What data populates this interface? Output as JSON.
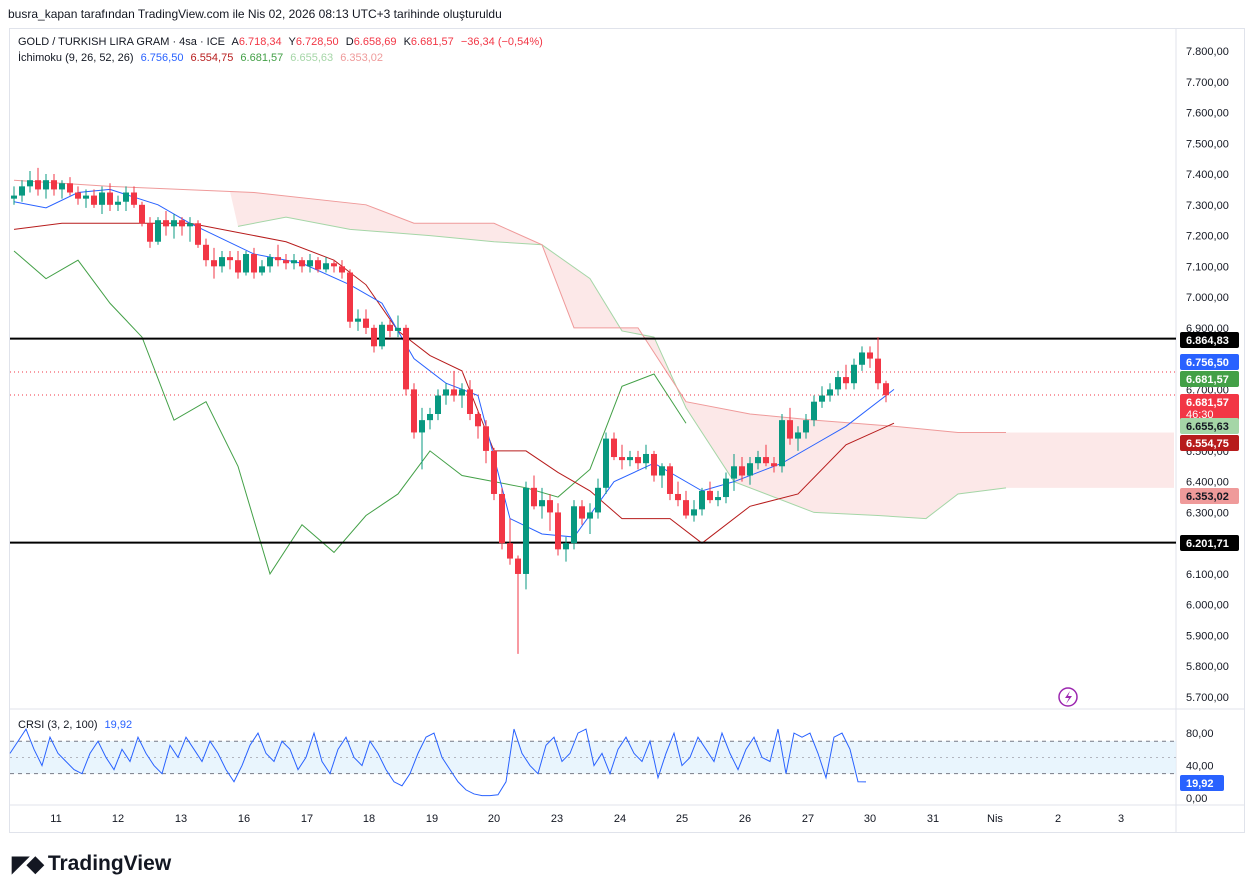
{
  "header": {
    "caption": "busra_kapan tarafından TradingView.com ile Nis 02, 2026 08:13 UTC+3 tarihinde oluşturuldu"
  },
  "legend": {
    "symbol": "GOLD / TURKISH LIRA GRAM · 4sa · ICE",
    "o_label": "A",
    "o_value": "6.718,34",
    "h_label": "Y",
    "h_value": "6.728,50",
    "l_label": "D",
    "l_value": "6.658,69",
    "c_label": "K",
    "c_value": "6.681,57",
    "change": "−36,34 (−0,54%)",
    "ichimoku_label": "İchimoku (9, 26, 52, 26)",
    "ichimoku_values": [
      "6.756,50",
      "6.554,75",
      "6.681,57",
      "6.655,63",
      "6.353,02"
    ]
  },
  "crsi": {
    "label": "CRSI (3, 2, 100)",
    "value": "19,92"
  },
  "brand": {
    "name": "TradingView"
  },
  "colors": {
    "up": "#089981",
    "down": "#f23645",
    "conversion": "#2962ff",
    "base": "#b71c1c",
    "lagging": "#43a047",
    "spanA": "#a5d6a7",
    "spanB": "#ef9a9a",
    "cloud": "#fce4e4",
    "crsi": "#2962ff"
  },
  "chart_data": {
    "type": "candlestick",
    "title": "GOLD / TURKISH LIRA GRAM · 4sa · ICE",
    "y_axis": {
      "range": [
        5650,
        7850
      ],
      "ticks": [
        "7.800,00",
        "7.700,00",
        "7.600,00",
        "7.500,00",
        "7.400,00",
        "7.300,00",
        "7.200,00",
        "7.100,00",
        "7.000,00",
        "6.900,00",
        "6.800,00",
        "6.700,00",
        "6.600,00",
        "6.500,00",
        "6.400,00",
        "6.300,00",
        "6.200,00",
        "6.100,00",
        "6.000,00",
        "5.900,00",
        "5.800,00",
        "5.700,00"
      ]
    },
    "x_axis": {
      "ticks": [
        "11",
        "12",
        "13",
        "16",
        "17",
        "18",
        "19",
        "20",
        "23",
        "24",
        "25",
        "26",
        "27",
        "30",
        "31",
        "Nis",
        "2",
        "3"
      ]
    },
    "horizontal_lines": [
      {
        "value": 6864.83,
        "label": "6.864,83"
      },
      {
        "value": 6201.71,
        "label": "6.201,71"
      }
    ],
    "price_labels": [
      {
        "value": 6864.83,
        "text": "6.864,83",
        "bg": "#000000",
        "fg": "#ffffff"
      },
      {
        "value": 6756.5,
        "text": "6.756,50",
        "bg": "#2962ff",
        "fg": "#ffffff"
      },
      {
        "value": 6681.57,
        "text": "6.681,57",
        "bg": "#43a047",
        "fg": "#ffffff"
      },
      {
        "value": 6681.57,
        "text": "6.681,57",
        "sub": "46:30",
        "bg": "#f23645",
        "fg": "#ffffff"
      },
      {
        "value": 6655.63,
        "text": "6.655,63",
        "bg": "#a5d6a7",
        "fg": "#131722"
      },
      {
        "value": 6554.75,
        "text": "6.554,75",
        "bg": "#b71c1c",
        "fg": "#ffffff"
      },
      {
        "value": 6353.02,
        "text": "6.353,02",
        "bg": "#ef9a9a",
        "fg": "#131722"
      },
      {
        "value": 6201.71,
        "text": "6.201,71",
        "bg": "#000000",
        "fg": "#ffffff"
      }
    ],
    "candles": [
      [
        7320,
        7360,
        7300,
        7330
      ],
      [
        7330,
        7380,
        7310,
        7360
      ],
      [
        7360,
        7410,
        7340,
        7380
      ],
      [
        7380,
        7420,
        7330,
        7350
      ],
      [
        7350,
        7400,
        7320,
        7380
      ],
      [
        7380,
        7400,
        7330,
        7350
      ],
      [
        7350,
        7380,
        7320,
        7370
      ],
      [
        7370,
        7390,
        7330,
        7340
      ],
      [
        7340,
        7360,
        7300,
        7320
      ],
      [
        7320,
        7350,
        7290,
        7330
      ],
      [
        7330,
        7350,
        7290,
        7300
      ],
      [
        7300,
        7360,
        7270,
        7340
      ],
      [
        7340,
        7370,
        7280,
        7300
      ],
      [
        7300,
        7330,
        7280,
        7310
      ],
      [
        7310,
        7360,
        7280,
        7340
      ],
      [
        7340,
        7360,
        7290,
        7300
      ],
      [
        7300,
        7310,
        7230,
        7240
      ],
      [
        7240,
        7260,
        7160,
        7180
      ],
      [
        7180,
        7260,
        7170,
        7250
      ],
      [
        7250,
        7280,
        7200,
        7230
      ],
      [
        7230,
        7270,
        7190,
        7250
      ],
      [
        7250,
        7260,
        7200,
        7230
      ],
      [
        7230,
        7260,
        7180,
        7240
      ],
      [
        7240,
        7250,
        7160,
        7170
      ],
      [
        7170,
        7190,
        7100,
        7120
      ],
      [
        7120,
        7160,
        7060,
        7100
      ],
      [
        7100,
        7150,
        7080,
        7130
      ],
      [
        7130,
        7150,
        7090,
        7120
      ],
      [
        7120,
        7150,
        7060,
        7080
      ],
      [
        7080,
        7150,
        7070,
        7140
      ],
      [
        7140,
        7160,
        7060,
        7080
      ],
      [
        7080,
        7120,
        7070,
        7100
      ],
      [
        7100,
        7140,
        7080,
        7130
      ],
      [
        7130,
        7170,
        7100,
        7120
      ],
      [
        7120,
        7140,
        7090,
        7110
      ],
      [
        7110,
        7140,
        7090,
        7120
      ],
      [
        7120,
        7130,
        7080,
        7100
      ],
      [
        7100,
        7140,
        7080,
        7120
      ],
      [
        7120,
        7130,
        7080,
        7090
      ],
      [
        7090,
        7130,
        7080,
        7110
      ],
      [
        7110,
        7120,
        7080,
        7100
      ],
      [
        7100,
        7120,
        7060,
        7080
      ],
      [
        7080,
        7090,
        6900,
        6920
      ],
      [
        6920,
        6960,
        6890,
        6930
      ],
      [
        6930,
        6960,
        6880,
        6900
      ],
      [
        6900,
        6910,
        6820,
        6840
      ],
      [
        6840,
        6920,
        6830,
        6910
      ],
      [
        6910,
        6930,
        6870,
        6890
      ],
      [
        6890,
        6940,
        6870,
        6900
      ],
      [
        6900,
        6910,
        6680,
        6700
      ],
      [
        6700,
        6720,
        6540,
        6560
      ],
      [
        6560,
        6640,
        6440,
        6600
      ],
      [
        6600,
        6640,
        6570,
        6620
      ],
      [
        6620,
        6700,
        6600,
        6680
      ],
      [
        6680,
        6720,
        6650,
        6700
      ],
      [
        6700,
        6760,
        6660,
        6680
      ],
      [
        6680,
        6720,
        6640,
        6700
      ],
      [
        6700,
        6730,
        6600,
        6620
      ],
      [
        6620,
        6630,
        6540,
        6580
      ],
      [
        6580,
        6600,
        6460,
        6500
      ],
      [
        6500,
        6510,
        6340,
        6360
      ],
      [
        6360,
        6380,
        6180,
        6200
      ],
      [
        6200,
        6280,
        6130,
        6150
      ],
      [
        6150,
        6160,
        5840,
        6100
      ],
      [
        6100,
        6400,
        6050,
        6380
      ],
      [
        6380,
        6420,
        6310,
        6320
      ],
      [
        6320,
        6380,
        6280,
        6340
      ],
      [
        6340,
        6360,
        6240,
        6300
      ],
      [
        6300,
        6330,
        6160,
        6180
      ],
      [
        6180,
        6220,
        6140,
        6200
      ],
      [
        6200,
        6340,
        6180,
        6320
      ],
      [
        6320,
        6340,
        6260,
        6280
      ],
      [
        6280,
        6330,
        6230,
        6300
      ],
      [
        6300,
        6410,
        6280,
        6380
      ],
      [
        6380,
        6560,
        6360,
        6540
      ],
      [
        6540,
        6560,
        6470,
        6480
      ],
      [
        6480,
        6520,
        6440,
        6470
      ],
      [
        6470,
        6500,
        6450,
        6480
      ],
      [
        6480,
        6500,
        6440,
        6460
      ],
      [
        6460,
        6520,
        6440,
        6490
      ],
      [
        6490,
        6500,
        6400,
        6420
      ],
      [
        6420,
        6460,
        6380,
        6450
      ],
      [
        6450,
        6460,
        6340,
        6360
      ],
      [
        6360,
        6400,
        6320,
        6340
      ],
      [
        6340,
        6370,
        6280,
        6290
      ],
      [
        6290,
        6340,
        6270,
        6310
      ],
      [
        6310,
        6380,
        6290,
        6370
      ],
      [
        6370,
        6400,
        6330,
        6340
      ],
      [
        6340,
        6370,
        6320,
        6350
      ],
      [
        6350,
        6430,
        6330,
        6410
      ],
      [
        6410,
        6490,
        6370,
        6450
      ],
      [
        6450,
        6480,
        6400,
        6420
      ],
      [
        6420,
        6480,
        6390,
        6460
      ],
      [
        6460,
        6500,
        6440,
        6480
      ],
      [
        6480,
        6520,
        6450,
        6460
      ],
      [
        6460,
        6480,
        6430,
        6450
      ],
      [
        6450,
        6620,
        6430,
        6600
      ],
      [
        6600,
        6640,
        6520,
        6540
      ],
      [
        6540,
        6580,
        6500,
        6560
      ],
      [
        6560,
        6620,
        6540,
        6600
      ],
      [
        6600,
        6680,
        6580,
        6660
      ],
      [
        6660,
        6710,
        6640,
        6680
      ],
      [
        6680,
        6720,
        6660,
        6700
      ],
      [
        6700,
        6760,
        6680,
        6740
      ],
      [
        6740,
        6780,
        6700,
        6720
      ],
      [
        6720,
        6800,
        6700,
        6780
      ],
      [
        6780,
        6840,
        6760,
        6820
      ],
      [
        6820,
        6840,
        6770,
        6800
      ],
      [
        6800,
        6870,
        6700,
        6720
      ],
      [
        6720,
        6728,
        6658,
        6681
      ]
    ],
    "ichimoku": {
      "conversion": [
        [
          0,
          7310
        ],
        [
          4,
          7290
        ],
        [
          8,
          7340
        ],
        [
          12,
          7350
        ],
        [
          18,
          7300
        ],
        [
          22,
          7240
        ],
        [
          26,
          7190
        ],
        [
          30,
          7140
        ],
        [
          36,
          7110
        ],
        [
          42,
          7040
        ],
        [
          46,
          6980
        ],
        [
          50,
          6800
        ],
        [
          54,
          6720
        ],
        [
          58,
          6680
        ],
        [
          62,
          6280
        ],
        [
          66,
          6230
        ],
        [
          70,
          6220
        ],
        [
          75,
          6400
        ],
        [
          80,
          6460
        ],
        [
          86,
          6370
        ],
        [
          90,
          6400
        ],
        [
          96,
          6460
        ],
        [
          100,
          6520
        ],
        [
          104,
          6580
        ],
        [
          110,
          6700
        ]
      ],
      "base": [
        [
          0,
          7220
        ],
        [
          6,
          7240
        ],
        [
          14,
          7240
        ],
        [
          22,
          7240
        ],
        [
          28,
          7210
        ],
        [
          34,
          7180
        ],
        [
          40,
          7120
        ],
        [
          44,
          7040
        ],
        [
          48,
          6890
        ],
        [
          52,
          6810
        ],
        [
          56,
          6760
        ],
        [
          60,
          6500
        ],
        [
          64,
          6500
        ],
        [
          68,
          6430
        ],
        [
          72,
          6370
        ],
        [
          76,
          6280
        ],
        [
          82,
          6280
        ],
        [
          86,
          6200
        ],
        [
          92,
          6320
        ],
        [
          98,
          6360
        ],
        [
          104,
          6520
        ],
        [
          110,
          6590
        ]
      ],
      "lagging": [
        [
          0,
          7150
        ],
        [
          4,
          7060
        ],
        [
          8,
          7120
        ],
        [
          12,
          6980
        ],
        [
          16,
          6870
        ],
        [
          20,
          6600
        ],
        [
          24,
          6660
        ],
        [
          28,
          6450
        ],
        [
          32,
          6100
        ],
        [
          36,
          6260
        ],
        [
          40,
          6170
        ],
        [
          44,
          6290
        ],
        [
          48,
          6360
        ],
        [
          52,
          6500
        ],
        [
          56,
          6420
        ],
        [
          60,
          6400
        ],
        [
          64,
          6380
        ],
        [
          68,
          6350
        ],
        [
          72,
          6440
        ],
        [
          76,
          6710
        ],
        [
          80,
          6750
        ],
        [
          84,
          6590
        ]
      ],
      "span_a": [
        [
          28,
          7230
        ],
        [
          34,
          7260
        ],
        [
          42,
          7220
        ],
        [
          52,
          7200
        ],
        [
          60,
          7180
        ],
        [
          66,
          7170
        ],
        [
          72,
          7060
        ],
        [
          76,
          6890
        ],
        [
          80,
          6870
        ],
        [
          84,
          6640
        ],
        [
          90,
          6400
        ],
        [
          100,
          6300
        ],
        [
          108,
          6290
        ],
        [
          114,
          6280
        ],
        [
          118,
          6360
        ],
        [
          124,
          6380
        ]
      ],
      "span_b": [
        [
          0,
          7380
        ],
        [
          12,
          7360
        ],
        [
          30,
          7340
        ],
        [
          44,
          7300
        ],
        [
          50,
          7240
        ],
        [
          60,
          7240
        ],
        [
          66,
          7170
        ],
        [
          70,
          6900
        ],
        [
          78,
          6900
        ],
        [
          84,
          6660
        ],
        [
          92,
          6620
        ],
        [
          100,
          6600
        ],
        [
          110,
          6580
        ],
        [
          118,
          6560
        ],
        [
          124,
          6560
        ]
      ]
    },
    "crsi": {
      "ticks": [
        "80,00",
        "40,00",
        "0,00"
      ],
      "bands": [
        70,
        30
      ],
      "values": [
        55,
        70,
        85,
        60,
        40,
        75,
        55,
        45,
        35,
        30,
        55,
        70,
        50,
        35,
        60,
        45,
        75,
        55,
        40,
        30,
        65,
        50,
        75,
        60,
        45,
        70,
        55,
        35,
        20,
        40,
        65,
        80,
        55,
        45,
        70,
        60,
        35,
        50,
        80,
        45,
        30,
        60,
        75,
        50,
        40,
        70,
        55,
        35,
        20,
        15,
        30,
        55,
        75,
        80,
        50,
        35,
        20,
        10,
        5,
        3,
        3,
        4,
        20,
        85,
        55,
        40,
        30,
        65,
        75,
        45,
        55,
        80,
        85,
        40,
        55,
        30,
        60,
        75,
        55,
        45,
        70,
        25,
        55,
        80,
        40,
        50,
        75,
        60,
        45,
        80,
        55,
        35,
        60,
        75,
        50,
        45,
        85,
        30,
        80,
        75,
        80,
        55,
        25,
        75,
        80,
        60,
        20,
        19.92
      ]
    }
  }
}
